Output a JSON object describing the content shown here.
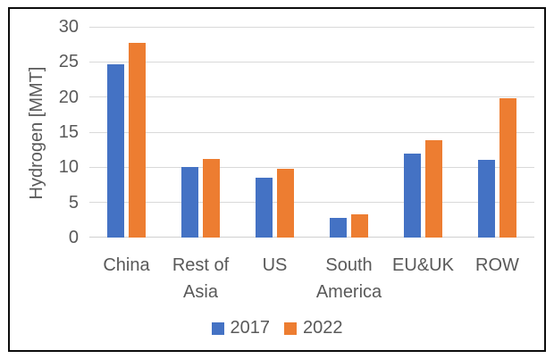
{
  "figure": {
    "background": "#ffffff",
    "border_color": "#0d0d0d",
    "text_color": "#595959",
    "gridline_color": "#d9d9d9"
  },
  "chart_data": {
    "type": "bar",
    "ylabel": "Hydrogen [MMT]",
    "xlabel": "",
    "categories": [
      "China",
      "Rest of Asia",
      "US",
      "South America",
      "EU&UK",
      "ROW"
    ],
    "series": [
      {
        "name": "2017",
        "color": "#4472C4",
        "values": [
          24.6,
          10.1,
          8.5,
          2.8,
          12.0,
          11.0
        ]
      },
      {
        "name": "2022",
        "color": "#ED7D31",
        "values": [
          27.7,
          11.2,
          9.8,
          3.3,
          13.9,
          19.8
        ]
      }
    ],
    "ylim": [
      0,
      30
    ],
    "yticks": [
      0,
      5,
      10,
      15,
      20,
      25,
      30
    ],
    "grid": true,
    "legend_position": "bottom"
  }
}
